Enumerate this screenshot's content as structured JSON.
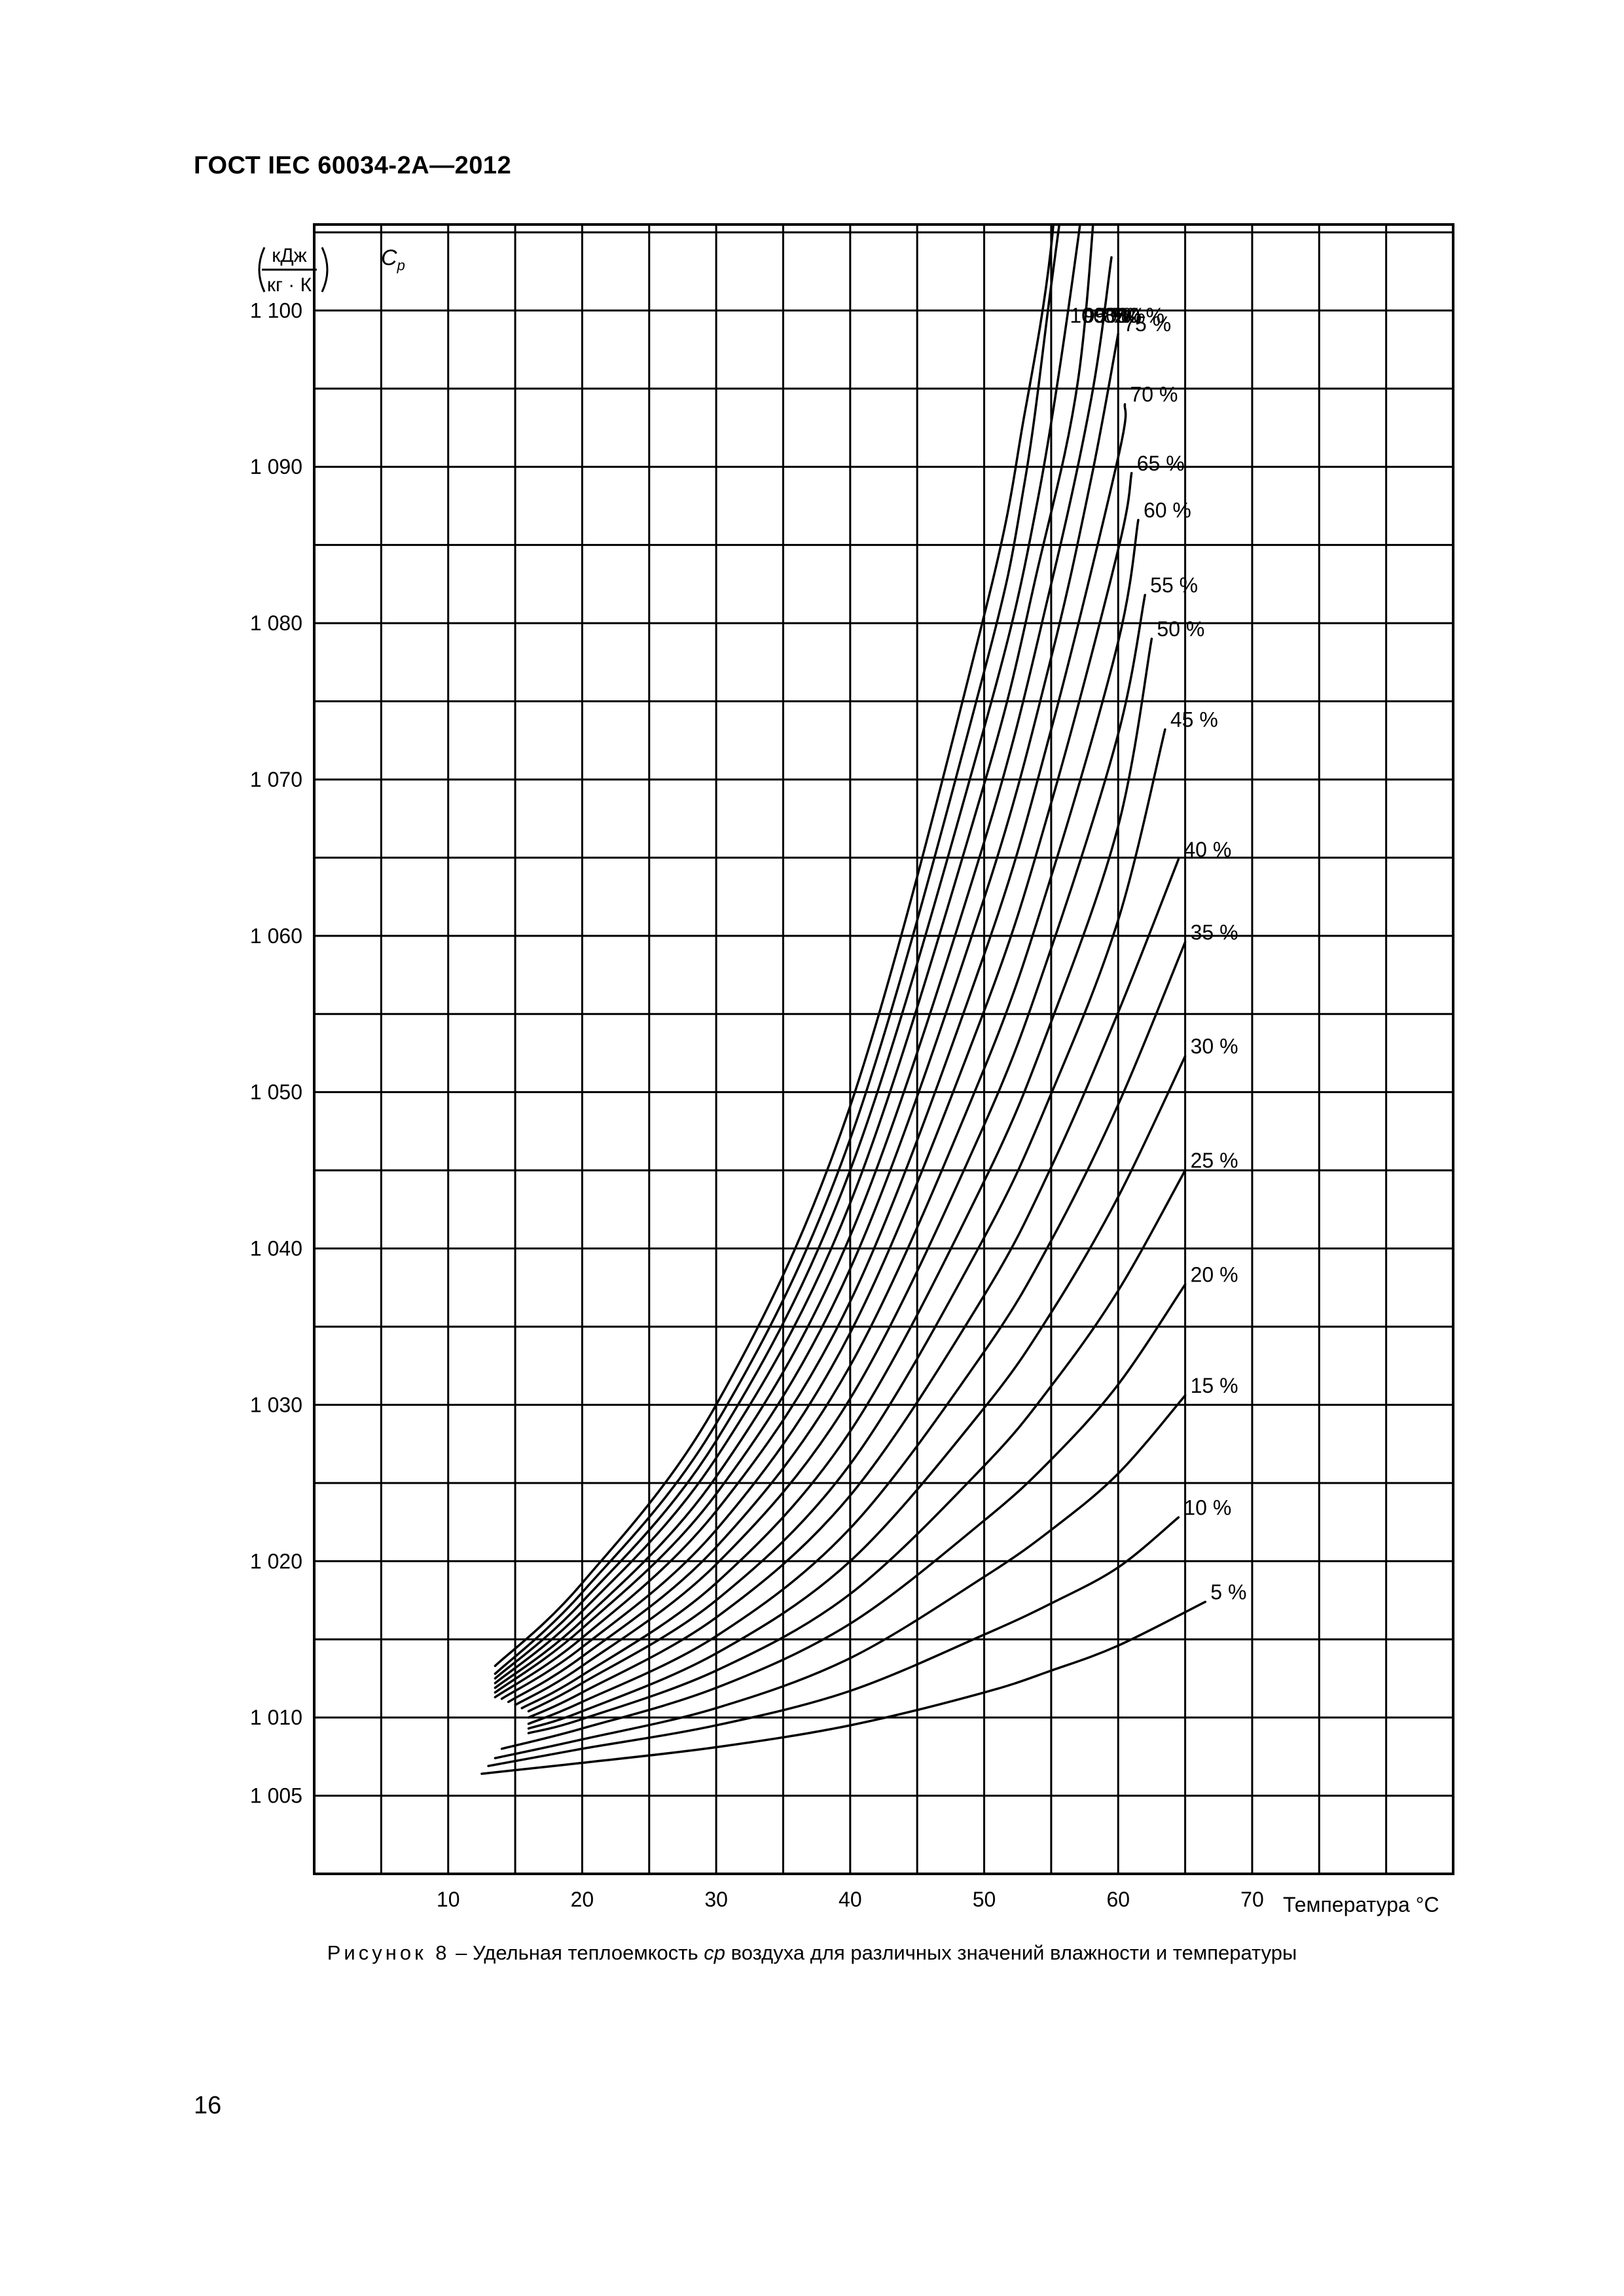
{
  "header": {
    "standard": "ГОСТ IEC 60034-2A—2012"
  },
  "figure": {
    "caption_lead": "Рисунок 8",
    "caption_dash": " – Удельная теплоемкость ",
    "caption_symbol": "cp",
    "caption_rest": " воздуха для различных значений влажности и температуры"
  },
  "page": {
    "number": "16"
  },
  "chart_data": {
    "type": "line",
    "title": "",
    "xlabel": "Температура °C",
    "ylabel_unit_top": "кДж",
    "ylabel_unit_bottom": "кг · К",
    "ylabel_symbol": "Cp",
    "xlim": [
      0,
      85
    ],
    "ylim": [
      1000,
      1105.5
    ],
    "x_ticks": [
      10,
      20,
      30,
      40,
      50,
      60,
      70
    ],
    "x_tick_labels": [
      "10",
      "20",
      "30",
      "40",
      "50",
      "60",
      "70"
    ],
    "y_ticks": [
      1005,
      1010,
      1020,
      1030,
      1040,
      1050,
      1060,
      1070,
      1080,
      1090,
      1100
    ],
    "y_tick_labels": [
      "1 005",
      "1 010",
      "1 020",
      "1 030",
      "1 040",
      "1 050",
      "1 060",
      "1 070",
      "1 080",
      "1 090",
      "1 100"
    ],
    "grid": true,
    "series": [
      {
        "name": "5 %",
        "x": [
          12.5,
          20,
          30,
          40,
          50,
          55,
          60,
          66.5
        ],
        "y": [
          1006.4,
          1007.1,
          1008.1,
          1009.5,
          1011.6,
          1013.0,
          1014.6,
          1017.4
        ]
      },
      {
        "name": "10 %",
        "x": [
          13,
          20,
          30,
          40,
          50,
          55,
          60,
          64.5
        ],
        "y": [
          1006.9,
          1008.0,
          1009.5,
          1011.7,
          1015.3,
          1017.3,
          1019.6,
          1022.8
        ]
      },
      {
        "name": "15 %",
        "x": [
          13.5,
          20,
          30,
          40,
          50,
          55,
          60,
          65
        ],
        "y": [
          1007.4,
          1008.6,
          1010.6,
          1013.8,
          1019.0,
          1022.0,
          1025.6,
          1030.6
        ]
      },
      {
        "name": "20 %",
        "x": [
          14,
          20,
          30,
          40,
          50,
          55,
          60,
          65
        ],
        "y": [
          1008.0,
          1009.3,
          1011.9,
          1016.0,
          1022.6,
          1026.5,
          1031.3,
          1037.7
        ]
      },
      {
        "name": "25 %",
        "x": [
          16,
          20,
          30,
          40,
          50,
          55,
          60,
          65
        ],
        "y": [
          1009.0,
          1009.9,
          1013.0,
          1017.9,
          1026.1,
          1031.2,
          1037.3,
          1045.0
        ]
      },
      {
        "name": "30 %",
        "x": [
          16,
          20,
          30,
          40,
          50,
          55,
          60,
          65
        ],
        "y": [
          1009.3,
          1010.4,
          1014.1,
          1020.0,
          1029.8,
          1035.9,
          1043.3,
          1052.3
        ]
      },
      {
        "name": "35 %",
        "x": [
          16,
          20,
          30,
          40,
          50,
          55,
          60,
          65
        ],
        "y": [
          1009.6,
          1011.0,
          1015.2,
          1022.1,
          1033.4,
          1040.5,
          1049.2,
          1059.6
        ]
      },
      {
        "name": "40 %",
        "x": [
          16,
          20,
          30,
          40,
          50,
          55,
          60,
          64.5
        ],
        "y": [
          1010.0,
          1011.6,
          1016.4,
          1024.2,
          1037.0,
          1045.2,
          1055.1,
          1064.9
        ]
      },
      {
        "name": "45 %",
        "x": [
          16,
          20,
          30,
          40,
          50,
          55,
          60,
          63.5
        ],
        "y": [
          1010.4,
          1012.2,
          1017.5,
          1026.2,
          1040.7,
          1049.9,
          1061.0,
          1073.2
        ]
      },
      {
        "name": "50 %",
        "x": [
          15.5,
          20,
          30,
          40,
          50,
          55,
          60,
          62.5
        ],
        "y": [
          1010.6,
          1012.7,
          1018.6,
          1028.3,
          1044.3,
          1054.5,
          1067.0,
          1079.0
        ]
      },
      {
        "name": "55 %",
        "x": [
          15,
          20,
          30,
          40,
          50,
          55,
          60,
          62
        ],
        "y": [
          1010.8,
          1013.3,
          1019.8,
          1030.4,
          1047.9,
          1059.2,
          1072.9,
          1081.8
        ]
      },
      {
        "name": "60 %",
        "x": [
          14.5,
          20,
          30,
          40,
          50,
          55,
          60,
          61.5
        ],
        "y": [
          1011.0,
          1013.9,
          1020.9,
          1032.5,
          1051.5,
          1063.8,
          1078.8,
          1086.6
        ]
      },
      {
        "name": "65 %",
        "x": [
          14,
          20,
          30,
          40,
          50,
          55,
          60,
          61
        ],
        "y": [
          1011.2,
          1014.5,
          1022.0,
          1034.6,
          1055.2,
          1068.5,
          1084.7,
          1089.6
        ]
      },
      {
        "name": "70 %",
        "x": [
          13.5,
          20,
          30,
          40,
          50,
          55,
          60,
          60.5
        ],
        "y": [
          1011.3,
          1015.1,
          1023.2,
          1036.6,
          1058.8,
          1073.2,
          1090.6,
          1094.0
        ]
      },
      {
        "name": "75 %",
        "x": [
          13.5,
          20,
          30,
          40,
          50,
          55,
          58,
          60
        ],
        "y": [
          1011.6,
          1015.7,
          1024.3,
          1038.7,
          1062.4,
          1077.8,
          1089.3,
          1098.5
        ]
      },
      {
        "name": "80 %",
        "x": [
          13.5,
          20,
          30,
          40,
          50,
          55,
          58,
          59.5
        ],
        "y": [
          1011.9,
          1016.2,
          1025.4,
          1040.8,
          1066.0,
          1082.5,
          1094.4,
          1103.4
        ]
      },
      {
        "name": "85%",
        "x": [
          13.5,
          20,
          30,
          40,
          50,
          54,
          57,
          58.5
        ],
        "y": [
          1012.2,
          1016.8,
          1026.6,
          1042.9,
          1069.7,
          1083.5,
          1095.5,
          1109.8
        ]
      },
      {
        "name": "90 %",
        "x": [
          13.5,
          20,
          30,
          40,
          50,
          54,
          57,
          57.8
        ],
        "y": [
          1012.5,
          1017.4,
          1027.7,
          1045.0,
          1073.3,
          1087.9,
          1104.5,
          1111.7
        ]
      },
      {
        "name": "95 %",
        "x": [
          13.5,
          20,
          30,
          40,
          50,
          53,
          55,
          57
        ],
        "y": [
          1012.8,
          1018.0,
          1028.8,
          1047.0,
          1076.9,
          1088.9,
          1101.6,
          1114.5
        ]
      },
      {
        "name": "100 %",
        "x": [
          13.5,
          20,
          30,
          40,
          50,
          53,
          55,
          56
        ],
        "y": [
          1013.3,
          1018.6,
          1030.0,
          1049.1,
          1080.5,
          1093.3,
          1104.1,
          1116.4
        ]
      }
    ]
  }
}
